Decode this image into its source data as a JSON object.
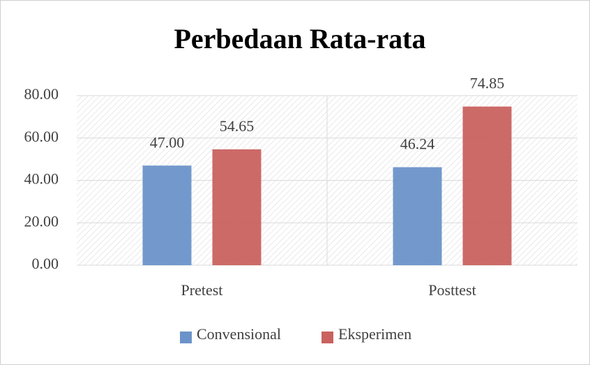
{
  "chart_data": {
    "type": "bar",
    "title": "Perbedaan Rata-rata",
    "categories": [
      "Pretest",
      "Posttest"
    ],
    "series": [
      {
        "name": "Convensional",
        "color": "#6b93c9",
        "values": [
          47.0,
          46.24
        ],
        "value_labels": [
          "47.00",
          "46.24"
        ]
      },
      {
        "name": "Eksperimen",
        "color": "#c9625f",
        "values": [
          54.65,
          74.85
        ],
        "value_labels": [
          "54.65",
          "74.85"
        ]
      }
    ],
    "ylim": [
      0,
      80
    ],
    "yticks": [
      {
        "value": 0,
        "label": "0.00"
      },
      {
        "value": 20,
        "label": "20.00"
      },
      {
        "value": 40,
        "label": "40.00"
      },
      {
        "value": 60,
        "label": "60.00"
      },
      {
        "value": 80,
        "label": "80.00"
      }
    ],
    "grid": true,
    "legend": "bottom"
  }
}
